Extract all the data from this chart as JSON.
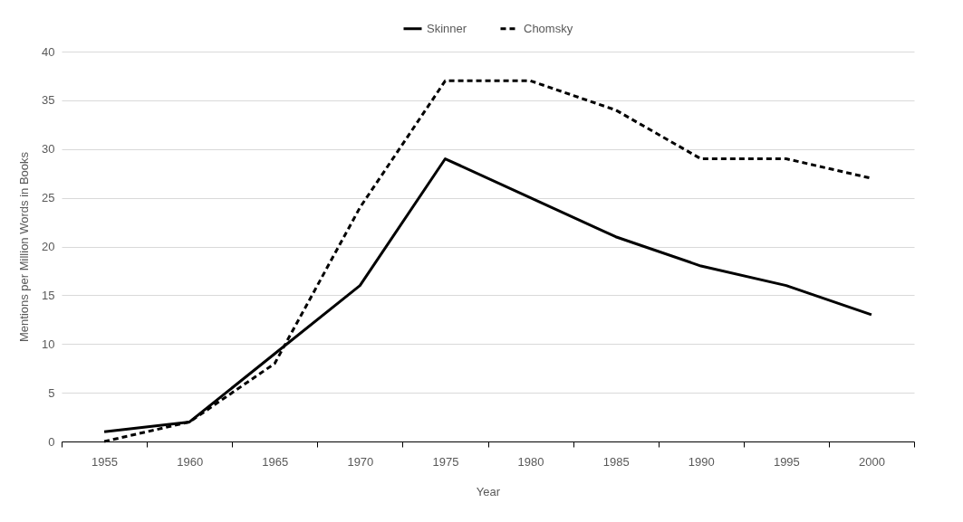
{
  "chart_data": {
    "type": "line",
    "xlabel": "Year",
    "ylabel": "Mentions per Million Words in Books",
    "categories": [
      "1955",
      "1960",
      "1965",
      "1970",
      "1975",
      "1980",
      "1985",
      "1990",
      "1995",
      "2000"
    ],
    "ylim": [
      0,
      40
    ],
    "yticks": [
      0,
      5,
      10,
      15,
      20,
      25,
      30,
      35,
      40
    ],
    "grid": "y",
    "legend": "top",
    "marker": "none",
    "series": [
      {
        "name": "Skinner",
        "color": "#000000",
        "line_style": "solid",
        "values": [
          1,
          2,
          9,
          16,
          29,
          25,
          21,
          18,
          16,
          13
        ]
      },
      {
        "name": "Chomsky",
        "color": "#000000",
        "line_style": "dashed",
        "values": [
          0,
          2,
          8,
          24,
          37,
          37,
          34,
          29,
          29,
          27
        ]
      }
    ]
  }
}
